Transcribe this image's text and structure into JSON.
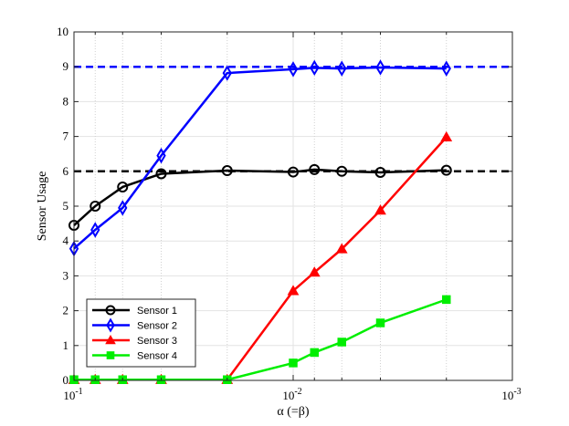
{
  "chart_data": {
    "type": "line",
    "xscale": "log",
    "x_reversed": true,
    "xlim": [
      0.1,
      0.001
    ],
    "ylim": [
      0,
      10
    ],
    "xlabel": "α (=β)",
    "ylabel": "Sensor Usage",
    "x_ticks": [
      {
        "value": 0.1,
        "base": "10",
        "exp": "-1"
      },
      {
        "value": 0.01,
        "base": "10",
        "exp": "-2"
      },
      {
        "value": 0.001,
        "base": "10",
        "exp": "-3"
      }
    ],
    "y_ticks": [
      "0",
      "1",
      "2",
      "3",
      "4",
      "5",
      "6",
      "7",
      "8",
      "9",
      "10"
    ],
    "x_minor_grid": [
      0.08,
      0.06,
      0.04,
      0.02,
      0.008,
      0.006,
      0.004,
      0.002
    ],
    "grid": true,
    "legend_position": "bottom-left",
    "reference_lines": [
      {
        "y": 9,
        "color": "#0000ff",
        "style": "dashed"
      },
      {
        "y": 6,
        "color": "#000000",
        "style": "dashed"
      }
    ],
    "x": [
      0.1,
      0.08,
      0.06,
      0.04,
      0.02,
      0.01,
      0.008,
      0.006,
      0.004,
      0.002
    ],
    "series": [
      {
        "name": "Sensor 1",
        "color": "#000000",
        "marker": "circle",
        "values": [
          4.45,
          5.0,
          5.55,
          5.93,
          6.02,
          5.98,
          6.05,
          6.0,
          5.97,
          6.03
        ]
      },
      {
        "name": "Sensor 2",
        "color": "#0000ff",
        "marker": "diamond",
        "values": [
          3.78,
          4.32,
          4.95,
          6.45,
          8.82,
          8.93,
          8.97,
          8.95,
          8.98,
          8.95
        ]
      },
      {
        "name": "Sensor 3",
        "color": "#ff0000",
        "marker": "triangle",
        "values": [
          0.02,
          0.02,
          0.02,
          0.02,
          0.02,
          2.57,
          3.1,
          3.77,
          4.88,
          6.98
        ]
      },
      {
        "name": "Sensor 4",
        "color": "#00ee00",
        "marker": "square",
        "values": [
          0.02,
          0.02,
          0.02,
          0.02,
          0.02,
          0.5,
          0.8,
          1.1,
          1.65,
          2.32
        ]
      }
    ]
  }
}
